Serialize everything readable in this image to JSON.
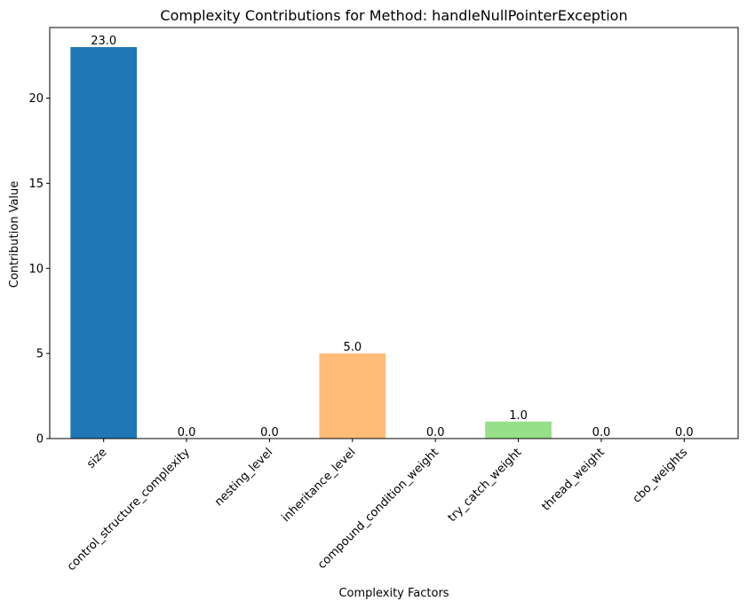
{
  "chart_data": {
    "type": "bar",
    "title": "Complexity Contributions for Method: handleNullPointerException",
    "xlabel": "Complexity Factors",
    "ylabel": "Contribution Value",
    "categories": [
      "size",
      "control_structure_complexity",
      "nesting_level",
      "inheritance_level",
      "compound_condition_weight",
      "try_catch_weight",
      "thread_weight",
      "cbo_weights"
    ],
    "values": [
      23.0,
      0.0,
      0.0,
      5.0,
      0.0,
      1.0,
      0.0,
      0.0
    ],
    "value_labels": [
      "23.0",
      "0.0",
      "0.0",
      "5.0",
      "0.0",
      "1.0",
      "0.0",
      "0.0"
    ],
    "colors": [
      "#1f77b4",
      "#aec7e8",
      "#ff7f0e",
      "#ffbb78",
      "#2ca02c",
      "#98df8a",
      "#d62728",
      "#ff9896"
    ],
    "ylim": [
      0,
      24.15
    ],
    "yticks": [
      0,
      5,
      10,
      15,
      20
    ],
    "ytick_labels": [
      "0",
      "5",
      "10",
      "15",
      "20"
    ],
    "grid": false,
    "legend": "none"
  }
}
